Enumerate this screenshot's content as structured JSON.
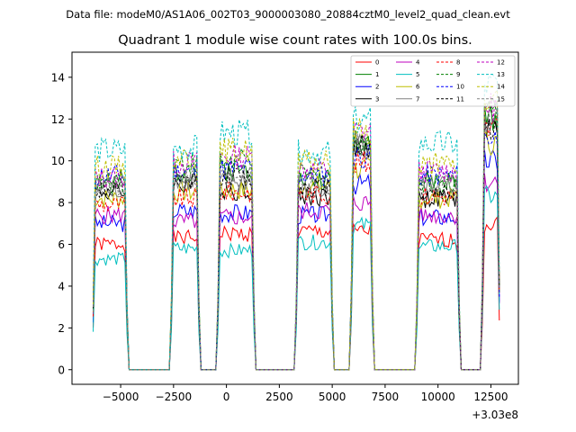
{
  "figure": {
    "suptitle": "Data file: modeM0/AS1A06_002T03_9000003080_20884cztM0_level2_quad_clean.evt"
  },
  "chart_data": {
    "type": "line",
    "title": "Quadrant 1 module wise count rates with 100.0s bins.",
    "xlabel": "",
    "ylabel": "",
    "x_offset_label": "+3.03e8",
    "xlim": [
      -7300,
      13800
    ],
    "ylim": [
      -0.7,
      15.2
    ],
    "x_ticks": [
      -5000,
      -2500,
      0,
      2500,
      5000,
      7500,
      10000,
      12500
    ],
    "x_tick_labels": [
      "−5000",
      "−2500",
      "0",
      "2500",
      "5000",
      "7500",
      "10000",
      "12500"
    ],
    "y_ticks": [
      0,
      2,
      4,
      6,
      8,
      10,
      12,
      14
    ],
    "y_tick_labels": [
      "0",
      "2",
      "4",
      "6",
      "8",
      "10",
      "12",
      "14"
    ],
    "legend_position": "top-right",
    "segments": [
      {
        "start": -6300,
        "end": -4700
      },
      {
        "start": -2600,
        "end": -1300
      },
      {
        "start": -400,
        "end": 1300
      },
      {
        "start": 3300,
        "end": 5000
      },
      {
        "start": 5900,
        "end": 6900
      },
      {
        "start": 9000,
        "end": 11000
      },
      {
        "start": 12100,
        "end": 12900
      }
    ],
    "series": [
      {
        "name": "0",
        "color": "#ff0000",
        "dashed": false,
        "values": [
          6.0,
          6.3,
          6.5,
          6.6,
          6.6,
          6.2,
          7.0
        ]
      },
      {
        "name": "1",
        "color": "#008000",
        "dashed": false,
        "values": [
          9.0,
          9.5,
          9.6,
          9.1,
          11.0,
          9.0,
          12.0
        ]
      },
      {
        "name": "2",
        "color": "#0000ff",
        "dashed": false,
        "values": [
          7.0,
          7.6,
          7.5,
          7.4,
          8.9,
          7.3,
          10.0
        ]
      },
      {
        "name": "3",
        "color": "#000000",
        "dashed": false,
        "values": [
          8.5,
          8.9,
          8.6,
          8.3,
          10.6,
          8.2,
          11.6
        ]
      },
      {
        "name": "4",
        "color": "#bf00bf",
        "dashed": false,
        "values": [
          7.4,
          7.1,
          7.3,
          7.6,
          8.0,
          7.4,
          9.0
        ]
      },
      {
        "name": "5",
        "color": "#00bfbf",
        "dashed": false,
        "values": [
          5.3,
          5.8,
          5.7,
          6.1,
          6.9,
          5.9,
          8.3
        ]
      },
      {
        "name": "6",
        "color": "#bfbf00",
        "dashed": false,
        "values": [
          8.2,
          8.5,
          8.6,
          8.8,
          9.6,
          8.2,
          10.9
        ]
      },
      {
        "name": "7",
        "color": "#808080",
        "dashed": false,
        "values": [
          8.6,
          9.0,
          9.0,
          8.5,
          10.8,
          8.8,
          12.3
        ]
      },
      {
        "name": "8",
        "color": "#ff0000",
        "dashed": true,
        "values": [
          7.9,
          8.2,
          8.5,
          8.4,
          9.9,
          8.3,
          11.5
        ]
      },
      {
        "name": "9",
        "color": "#008000",
        "dashed": true,
        "values": [
          8.9,
          9.9,
          10.0,
          9.3,
          10.9,
          9.0,
          12.4
        ]
      },
      {
        "name": "10",
        "color": "#0000ff",
        "dashed": true,
        "values": [
          9.3,
          9.5,
          9.6,
          9.3,
          10.2,
          9.3,
          11.1
        ]
      },
      {
        "name": "11",
        "color": "#000000",
        "dashed": true,
        "values": [
          8.6,
          8.9,
          9.2,
          8.8,
          10.8,
          8.5,
          11.6
        ]
      },
      {
        "name": "12",
        "color": "#bf00bf",
        "dashed": true,
        "values": [
          9.2,
          9.9,
          10.2,
          9.6,
          11.4,
          9.5,
          12.6
        ]
      },
      {
        "name": "13",
        "color": "#00bfbf",
        "dashed": true,
        "values": [
          10.5,
          10.6,
          11.3,
          10.4,
          11.9,
          10.8,
          13.6
        ]
      },
      {
        "name": "14",
        "color": "#bfbf00",
        "dashed": true,
        "values": [
          9.7,
          10.2,
          10.5,
          9.9,
          11.5,
          9.8,
          12.9
        ]
      },
      {
        "name": "15",
        "color": "#808080",
        "dashed": true,
        "values": [
          8.8,
          9.1,
          9.4,
          9.0,
          10.7,
          8.9,
          11.9
        ]
      }
    ]
  }
}
